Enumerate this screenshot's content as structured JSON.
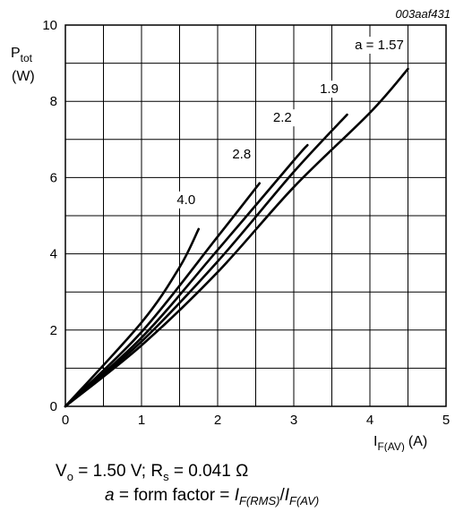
{
  "chart_data": {
    "type": "line",
    "figure_id": "003aaf431",
    "ylabel_main": "P",
    "ylabel_sub": "tot",
    "ylabel_unit": "(W)",
    "xlabel_main": "I",
    "xlabel_sub": "F(AV)",
    "xlabel_unit": "(A)",
    "xlim": [
      0,
      5
    ],
    "ylim": [
      0,
      10
    ],
    "x_ticks": [
      "0",
      "1",
      "2",
      "3",
      "4",
      "5"
    ],
    "y_ticks": [
      "0",
      "2",
      "4",
      "6",
      "8",
      "10"
    ],
    "grid": true,
    "series": [
      {
        "name": "a = 1.57",
        "label": "a = 1.57",
        "x": [
          0,
          1,
          2,
          3,
          4,
          4.5
        ],
        "y": [
          0,
          1.6,
          3.52,
          5.75,
          7.7,
          8.85
        ]
      },
      {
        "name": "1.9",
        "label": "1.9",
        "x": [
          0,
          1,
          2,
          3,
          3.7
        ],
        "y": [
          0,
          1.7,
          3.8,
          6.15,
          7.65
        ]
      },
      {
        "name": "2.2",
        "label": "2.2",
        "x": [
          0,
          1,
          2,
          3,
          3.18
        ],
        "y": [
          0,
          1.8,
          4.1,
          6.45,
          6.85
        ]
      },
      {
        "name": "2.8",
        "label": "2.8",
        "x": [
          0,
          1,
          2,
          2.55
        ],
        "y": [
          0,
          1.95,
          4.45,
          5.85
        ]
      },
      {
        "name": "4.0",
        "label": "4.0",
        "x": [
          0,
          1,
          1.5,
          1.75
        ],
        "y": [
          0,
          2.2,
          3.65,
          4.65
        ]
      }
    ]
  },
  "caption": {
    "line1_v": "V",
    "line1_v_sub": "o",
    "line1_mid": " = 1.50 V; R",
    "line1_r_sub": "s",
    "line1_end": " = 0.041 Ω",
    "line2_a": "a",
    "line2_mid": " = form factor = ",
    "line2_i1": "I",
    "line2_i1_sub": "F(RMS)",
    "line2_slash": "/",
    "line2_i2": "I",
    "line2_i2_sub": "F(AV)"
  }
}
